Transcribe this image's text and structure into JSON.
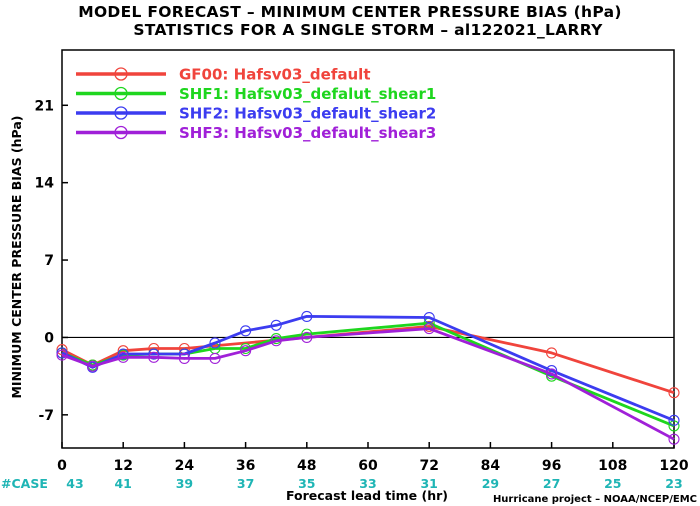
{
  "chart_data": {
    "type": "line",
    "title": "MODEL FORECAST – MINIMUM CENTER PRESSURE BIAS (hPa)",
    "subtitle": "STATISTICS FOR A SINGLE STORM – al122021_LARRY",
    "xlabel": "Forecast lead time (hr)",
    "ylabel": "MINIMUM CENTER PRESSURE BIAS (hPa)",
    "xlim": [
      0,
      120
    ],
    "ylim": [
      -10,
      26
    ],
    "xticks": [
      0,
      12,
      24,
      36,
      48,
      60,
      72,
      84,
      96,
      108,
      120
    ],
    "yticks": [
      -7,
      0,
      7,
      14,
      21
    ],
    "zero_line": true,
    "grid": false,
    "legend_position": "top-left",
    "case_label": "#CASE",
    "case_counts": [
      "43",
      "41",
      "39",
      "37",
      "35",
      "33",
      "31",
      "29",
      "27",
      "25",
      "23"
    ],
    "credit": "Hurricane project – NOAA/NCEP/EMC",
    "series": [
      {
        "name": "GF00: Hafsv03_default",
        "color": "#f0443c",
        "x": [
          0,
          6,
          12,
          18,
          24,
          72,
          96,
          120
        ],
        "y": [
          -1.1,
          -2.5,
          -1.2,
          -1.0,
          -1.0,
          1.0,
          -1.4,
          -5.0
        ]
      },
      {
        "name": "SHF1: Hafsv03_defalut_shear1",
        "color": "#1ed61e",
        "x": [
          0,
          6,
          12,
          18,
          24,
          30,
          36,
          42,
          48,
          72,
          96,
          120
        ],
        "y": [
          -1.4,
          -2.5,
          -1.6,
          -1.5,
          -1.5,
          -1.0,
          -1.0,
          -0.1,
          0.3,
          1.3,
          -3.5,
          -8.0
        ]
      },
      {
        "name": "SHF2: Hafsv03_default_shear2",
        "color": "#3c3cf0",
        "x": [
          0,
          6,
          12,
          18,
          24,
          30,
          36,
          42,
          48,
          72,
          96,
          120
        ],
        "y": [
          -1.4,
          -2.7,
          -1.5,
          -1.5,
          -1.5,
          -0.5,
          0.6,
          1.1,
          1.9,
          1.8,
          -3.0,
          -7.5
        ]
      },
      {
        "name": "SHF3: Hafsv03_default_shear3",
        "color": "#a020d8",
        "x": [
          0,
          6,
          12,
          18,
          24,
          30,
          36,
          42,
          48,
          72,
          96,
          120
        ],
        "y": [
          -1.6,
          -2.6,
          -1.8,
          -1.8,
          -1.9,
          -1.9,
          -1.2,
          -0.3,
          0.0,
          0.8,
          -3.3,
          -9.2
        ]
      }
    ]
  }
}
